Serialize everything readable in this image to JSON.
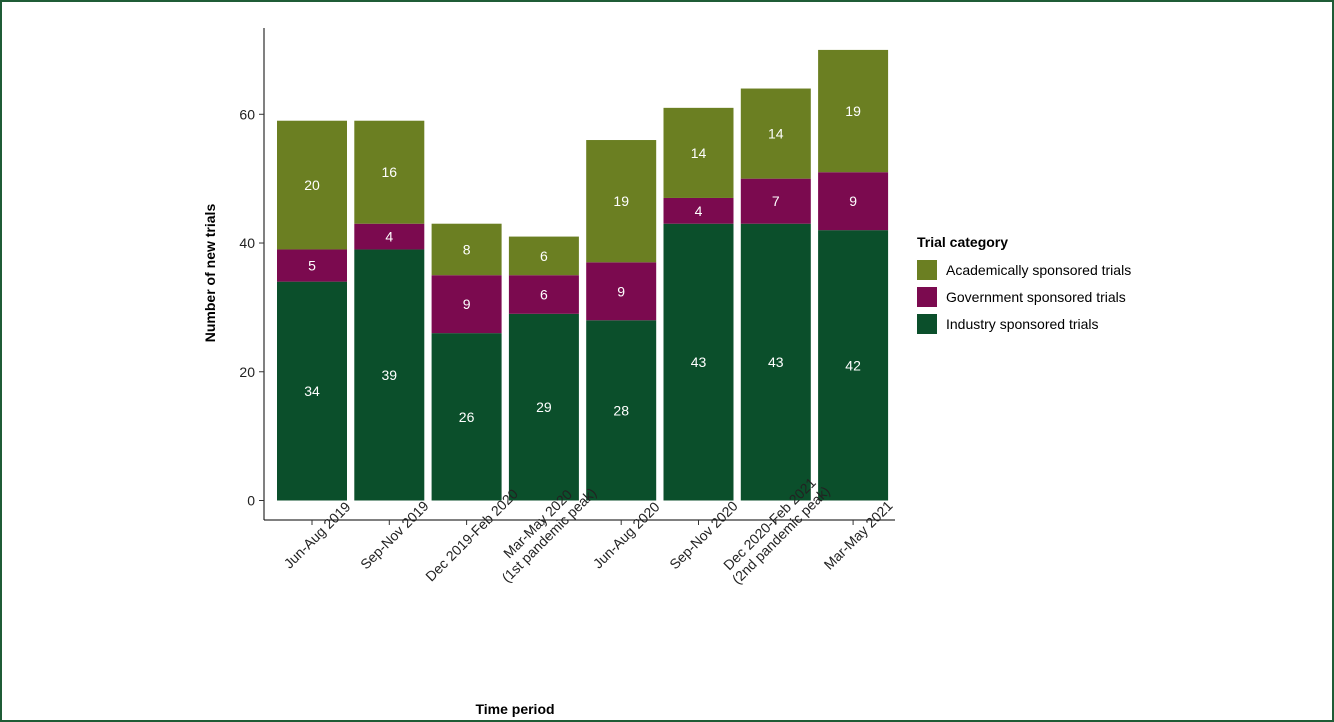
{
  "chart_data": {
    "type": "bar",
    "stacked": true,
    "xlabel": "Time period",
    "ylabel": "Number of new trials",
    "ylim": [
      0,
      73
    ],
    "yticks": [
      0,
      20,
      40,
      60
    ],
    "grid": false,
    "legend_position": "right",
    "legend_title": "Trial category",
    "categories": [
      [
        "Jun-Aug 2019"
      ],
      [
        "Sep-Nov 2019"
      ],
      [
        "Dec 2019-Feb 2020"
      ],
      [
        "Mar-May 2020",
        "(1st pandemic peak)"
      ],
      [
        "Jun-Aug 2020"
      ],
      [
        "Sep-Nov 2020"
      ],
      [
        "Dec 2020-Feb 2021",
        "(2nd pandemic peak)"
      ],
      [
        "Mar-May 2021"
      ]
    ],
    "series": [
      {
        "name": "Industry sponsored trials",
        "color": "#0b4f2b",
        "values": [
          34,
          39,
          26,
          29,
          28,
          43,
          43,
          42
        ]
      },
      {
        "name": "Government sponsored trials",
        "color": "#7b0a4f",
        "values": [
          5,
          4,
          9,
          6,
          9,
          4,
          7,
          9
        ]
      },
      {
        "name": "Academically sponsored trials",
        "color": "#6b7f22",
        "values": [
          20,
          16,
          8,
          6,
          19,
          14,
          14,
          19
        ]
      }
    ],
    "legend_order": [
      2,
      1,
      0
    ]
  }
}
